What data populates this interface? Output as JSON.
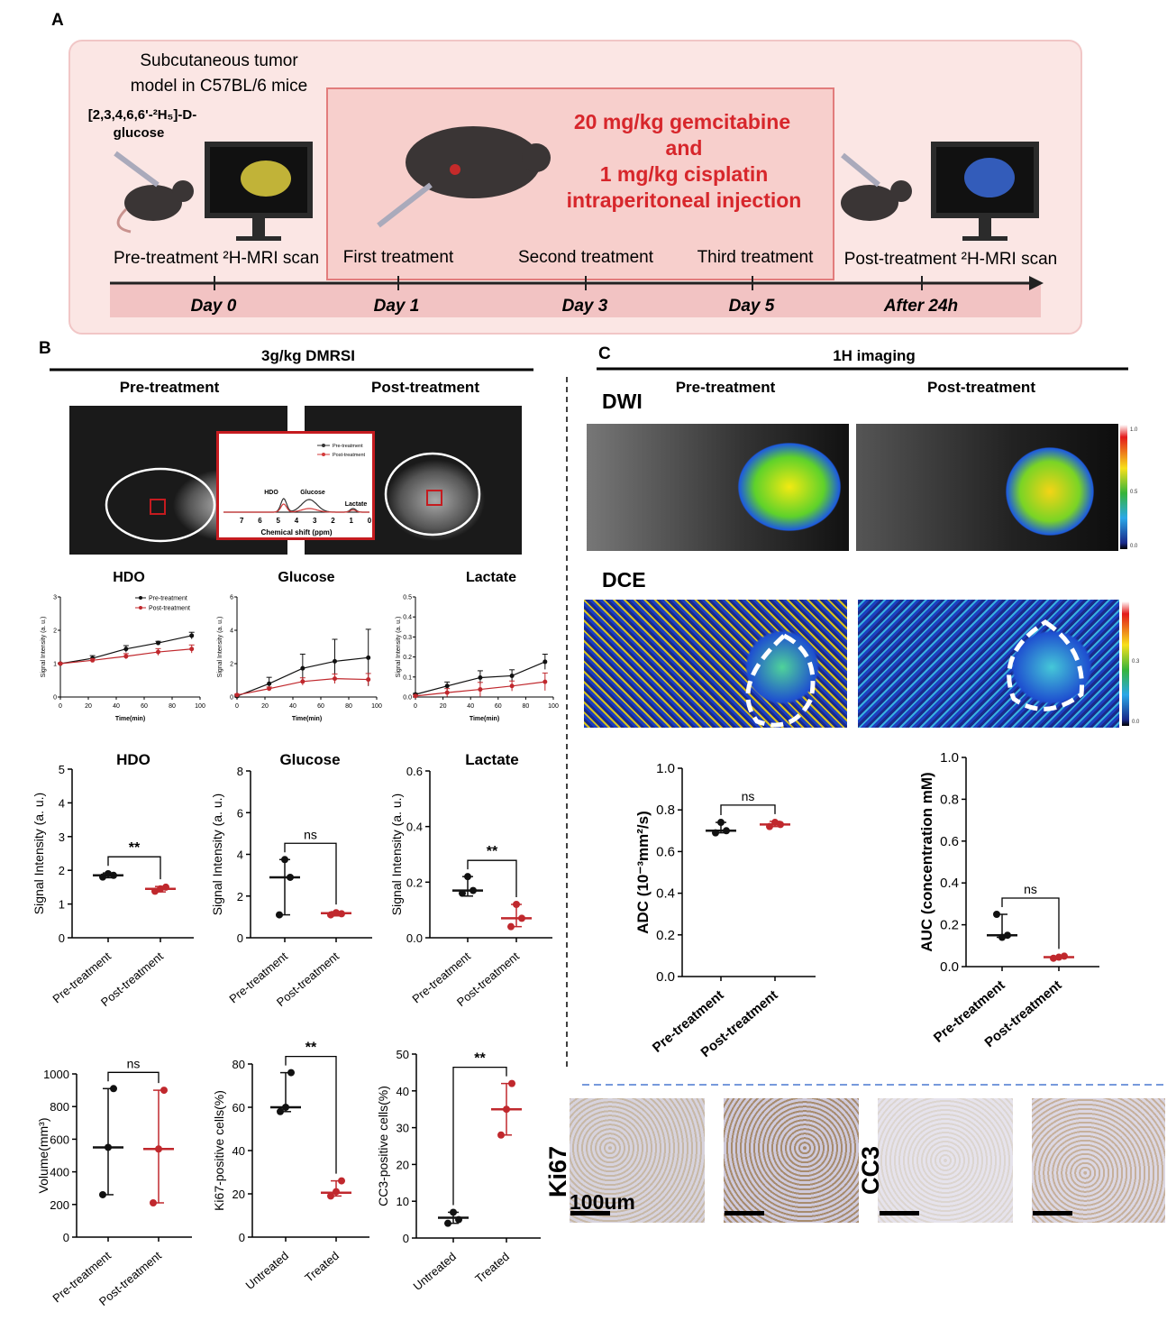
{
  "panel_a": {
    "label": "A",
    "model_line1": "Subcutaneous tumor",
    "model_line2": "model in C57BL/6 mice",
    "tracer_line1": "[2,3,4,6,6'-²H₅]-D-",
    "tracer_line2": "glucose",
    "drug_line1": "20 mg/kg gemcitabine",
    "drug_line2": "and",
    "drug_line3": "1 mg/kg cisplatin",
    "drug_line4": "intraperitoneal injection",
    "events": [
      "Pre-treatment ²H-MRI scan",
      "First treatment",
      "Second treatment",
      "Third treatment",
      "Post-treatment ²H-MRI scan"
    ],
    "days": [
      "Day 0",
      "Day 1",
      "Day 3",
      "Day 5",
      "After 24h"
    ],
    "colors": {
      "box": "#fbe6e4",
      "inner": "#f7cfcc",
      "drug": "#d7262b",
      "band": "#f2c3c3"
    }
  },
  "panel_b": {
    "label": "B",
    "title": "3g/kg  DMRSI",
    "pre": "Pre-treatment",
    "post": "Post-treatment"
  },
  "panel_c": {
    "label": "C",
    "title": "1H imaging",
    "pre": "Pre-treatment",
    "post": "Post-treatment",
    "dwi": "DWI",
    "dce": "DCE",
    "dwi_colorbar": [
      "1.0",
      "0.5",
      "0.0"
    ],
    "dce_colorbar": [
      "0.3",
      "0.0"
    ]
  },
  "histology": {
    "ki67": "Ki67",
    "cc3": "CC3",
    "scale": "100um"
  },
  "chart_data": [
    {
      "type": "line",
      "title": "",
      "xlabel": "Chemical shift (ppm)",
      "ylabel": "",
      "xlim": [
        8,
        0
      ],
      "xticks": [
        "7",
        "6",
        "5",
        "4",
        "3",
        "2",
        "1",
        "0"
      ],
      "annotations": [
        "HDO",
        "Glucose",
        "Lactate"
      ],
      "series": [
        {
          "name": "Pre-treatment",
          "color": "#333333"
        },
        {
          "name": "Post-treatment",
          "color": "#d33a3a"
        }
      ]
    },
    {
      "type": "line",
      "title": "HDO",
      "xlabel": "Time(min)",
      "ylabel": "Signal Intensity (a. u.)",
      "xlim": [
        0,
        100
      ],
      "ylim": [
        0,
        3
      ],
      "yticks": [
        0,
        1,
        2,
        3
      ],
      "xticks": [
        0,
        20,
        40,
        60,
        80,
        100
      ],
      "x": [
        0,
        23,
        47,
        70,
        94
      ],
      "series": [
        {
          "name": "Pre-treatment",
          "color": "#111111",
          "values": [
            1.0,
            1.16,
            1.44,
            1.62,
            1.84
          ],
          "err": [
            0.02,
            0.08,
            0.1,
            0.05,
            0.1
          ]
        },
        {
          "name": "Post-treatment",
          "color": "#c0282d",
          "values": [
            1.0,
            1.1,
            1.22,
            1.35,
            1.44
          ],
          "err": [
            0.02,
            0.05,
            0.08,
            0.1,
            0.12
          ]
        }
      ]
    },
    {
      "type": "line",
      "title": "Glucose",
      "xlabel": "Time(min)",
      "ylabel": "Signal Intensity (a. u.)",
      "xlim": [
        0,
        100
      ],
      "ylim": [
        0,
        6
      ],
      "yticks": [
        0,
        2,
        4,
        6
      ],
      "xticks": [
        0,
        20,
        40,
        60,
        80,
        100
      ],
      "x": [
        0,
        23,
        47,
        70,
        94
      ],
      "series": [
        {
          "color": "#111111",
          "values": [
            0.05,
            0.8,
            1.72,
            2.14,
            2.36
          ],
          "err": [
            0.05,
            0.38,
            0.85,
            1.32,
            1.7
          ]
        },
        {
          "color": "#c0282d",
          "values": [
            0.12,
            0.5,
            0.93,
            1.1,
            1.05
          ],
          "err": [
            0.05,
            0.1,
            0.22,
            0.28,
            0.36
          ]
        }
      ]
    },
    {
      "type": "line",
      "title": "Lactate",
      "xlabel": "Time(min)",
      "ylabel": "Signal Intensity (a. u.)",
      "xlim": [
        0,
        100
      ],
      "ylim": [
        0,
        0.5
      ],
      "yticks": [
        "0.0",
        "0.1",
        "0.2",
        "0.3",
        "0.4",
        "0.5"
      ],
      "xticks": [
        0,
        20,
        40,
        60,
        80,
        100
      ],
      "x": [
        0,
        23,
        47,
        70,
        94
      ],
      "series": [
        {
          "color": "#111111",
          "values": [
            0.013,
            0.055,
            0.097,
            0.106,
            0.176
          ],
          "err": [
            0.005,
            0.02,
            0.034,
            0.03,
            0.038
          ]
        },
        {
          "color": "#c0282d",
          "values": [
            0.005,
            0.022,
            0.038,
            0.055,
            0.076
          ],
          "err": [
            0.005,
            0.02,
            0.035,
            0.025,
            0.044
          ]
        }
      ]
    },
    {
      "type": "scatter",
      "title": "HDO",
      "ylabel": "Signal Intensity (a. u.)",
      "ylim": [
        0,
        5
      ],
      "yticks": [
        "0",
        "1",
        "2",
        "3",
        "4",
        "5"
      ],
      "categories": [
        "Pre-treatment",
        "Post-treatment"
      ],
      "significance": "**",
      "groups": [
        {
          "points": [
            1.8,
            1.9,
            1.85
          ],
          "mean": 1.85,
          "range": [
            1.78,
            1.92
          ],
          "color": "#111111"
        },
        {
          "points": [
            1.38,
            1.45,
            1.5
          ],
          "mean": 1.45,
          "range": [
            1.36,
            1.52
          ],
          "color": "#c0282d"
        }
      ]
    },
    {
      "type": "scatter",
      "title": "Glucose",
      "ylabel": "Signal Intensity (a. u.)",
      "ylim": [
        0,
        8
      ],
      "yticks": [
        "0",
        "2",
        "4",
        "6",
        "8"
      ],
      "categories": [
        "Pre-treatment",
        "Post-treatment"
      ],
      "significance": "ns",
      "groups": [
        {
          "points": [
            1.1,
            3.75,
            2.9
          ],
          "mean": 2.9,
          "range": [
            1.1,
            3.75
          ],
          "color": "#111111"
        },
        {
          "points": [
            1.1,
            1.2,
            1.15
          ],
          "mean": 1.18,
          "range": [
            1.05,
            1.25
          ],
          "color": "#c0282d"
        }
      ]
    },
    {
      "type": "scatter",
      "title": "Lactate",
      "ylabel": "Signal Intensity (a. u.)",
      "ylim": [
        0,
        0.6
      ],
      "yticks": [
        "0.0",
        "0.2",
        "0.4",
        "0.6"
      ],
      "categories": [
        "Pre-treatment",
        "Post-treatment"
      ],
      "significance": "**",
      "groups": [
        {
          "points": [
            0.16,
            0.22,
            0.17
          ],
          "mean": 0.17,
          "range": [
            0.15,
            0.22
          ],
          "color": "#111111"
        },
        {
          "points": [
            0.04,
            0.12,
            0.07
          ],
          "mean": 0.07,
          "range": [
            0.04,
            0.12
          ],
          "color": "#c0282d"
        }
      ]
    },
    {
      "type": "scatter",
      "title": "",
      "ylabel": "ADC (10⁻³mm²/s)",
      "ylim": [
        0,
        1
      ],
      "yticks": [
        "0.0",
        "0.2",
        "0.4",
        "0.6",
        "0.8",
        "1.0"
      ],
      "categories": [
        "Pre-treatment",
        "Post-treatment"
      ],
      "significance": "ns",
      "groups": [
        {
          "points": [
            0.69,
            0.74,
            0.7
          ],
          "mean": 0.7,
          "range": [
            0.69,
            0.74
          ],
          "color": "#111111"
        },
        {
          "points": [
            0.72,
            0.74,
            0.73
          ],
          "mean": 0.73,
          "range": [
            0.72,
            0.745
          ],
          "color": "#c0282d"
        }
      ]
    },
    {
      "type": "scatter",
      "title": "",
      "ylabel": "AUC (concentration mM)",
      "ylim": [
        0,
        1
      ],
      "yticks": [
        "0.0",
        "0.2",
        "0.4",
        "0.6",
        "0.8",
        "1.0"
      ],
      "categories": [
        "Pre-treatment",
        "Post-treatment"
      ],
      "significance": "ns",
      "groups": [
        {
          "points": [
            0.25,
            0.14,
            0.15
          ],
          "mean": 0.15,
          "range": [
            0.14,
            0.25
          ],
          "color": "#111111"
        },
        {
          "points": [
            0.04,
            0.045,
            0.05
          ],
          "mean": 0.045,
          "range": [
            0.04,
            0.05
          ],
          "color": "#c0282d"
        }
      ]
    },
    {
      "type": "scatter",
      "title": "",
      "ylabel": "Volume(mm³)",
      "ylim": [
        0,
        1000
      ],
      "yticks": [
        "0",
        "200",
        "400",
        "600",
        "800",
        "1000"
      ],
      "categories": [
        "Pre-treatment",
        "Post-treatment"
      ],
      "significance": "ns",
      "groups": [
        {
          "points": [
            260,
            550,
            910
          ],
          "mean": 550,
          "range": [
            260,
            910
          ],
          "color": "#111111"
        },
        {
          "points": [
            210,
            540,
            900
          ],
          "mean": 540,
          "range": [
            210,
            900
          ],
          "color": "#c0282d"
        }
      ]
    },
    {
      "type": "scatter",
      "title": "",
      "ylabel": "Ki67-positive cells(%)",
      "ylim": [
        0,
        80
      ],
      "yticks": [
        "0",
        "20",
        "40",
        "60",
        "80"
      ],
      "categories": [
        "Untreated",
        "Treated"
      ],
      "significance": "**",
      "groups": [
        {
          "points": [
            58,
            60,
            76
          ],
          "mean": 60,
          "range": [
            58,
            76
          ],
          "color": "#111111"
        },
        {
          "points": [
            19,
            21,
            26
          ],
          "mean": 20.5,
          "range": [
            19,
            26
          ],
          "color": "#c0282d"
        }
      ]
    },
    {
      "type": "scatter",
      "title": "",
      "ylabel": "CC3-positive cells(%)",
      "ylim": [
        0,
        50
      ],
      "yticks": [
        "0",
        "10",
        "20",
        "30",
        "40",
        "50"
      ],
      "categories": [
        "Untreated",
        "Treated"
      ],
      "significance": "**",
      "groups": [
        {
          "points": [
            4,
            7,
            5
          ],
          "mean": 5.5,
          "range": [
            4,
            7
          ],
          "color": "#111111"
        },
        {
          "points": [
            28,
            35,
            42
          ],
          "mean": 35,
          "range": [
            28,
            42
          ],
          "color": "#c0282d"
        }
      ]
    }
  ]
}
